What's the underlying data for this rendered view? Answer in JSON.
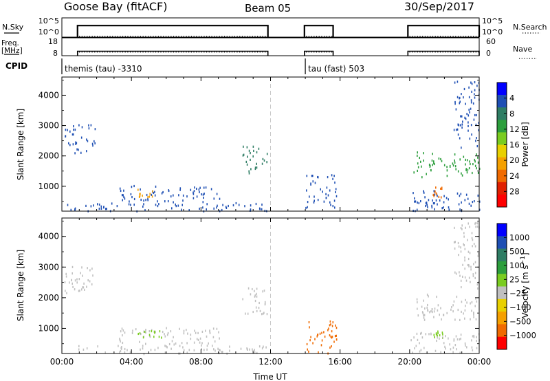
{
  "header": {
    "station": "Goose Bay (fitACF)",
    "beam": "Beam 05",
    "date": "30/Sep/2017"
  },
  "chart_data": [
    {
      "type": "line",
      "panel": "noise",
      "left_label": "N.Sky",
      "right_label": "N.Search",
      "left_ticks": [
        "10^5",
        "10^0"
      ],
      "right_ticks": [
        "10^5",
        "10^0"
      ],
      "series": [
        {
          "segments": [
            [
              0.9,
              11.85
            ],
            [
              13.95,
              15.6
            ],
            [
              19.9,
              24
            ]
          ],
          "level": 0.6
        },
        {
          "segments": [
            [
              0.9,
              11.85
            ],
            [
              13.95,
              15.6
            ],
            [
              19.9,
              24
            ]
          ],
          "level": 0.05
        }
      ]
    },
    {
      "type": "line",
      "panel": "frequency",
      "left_label": "Freq. [MHz]",
      "right_label": "Nave",
      "left_ticks": [
        "18",
        "8"
      ],
      "right_ticks": [
        "60",
        "0"
      ],
      "series": [
        {
          "segments": [
            [
              0.9,
              11.85
            ],
            [
              13.95,
              15.6
            ],
            [
              19.9,
              24
            ]
          ],
          "level_mhz": 10.5
        },
        {
          "segments": [
            [
              0.9,
              11.85
            ],
            [
              13.95,
              15.6
            ],
            [
              19.9,
              24
            ]
          ],
          "level_mhz": 10.0
        }
      ]
    },
    {
      "type": "table",
      "panel": "cpid",
      "label": "CPID",
      "entries": [
        {
          "start": 0.0,
          "text": "themis (tau) -3310"
        },
        {
          "start": 14.0,
          "text": "tau (fast) 503"
        }
      ]
    },
    {
      "type": "heatmap",
      "panel": "power",
      "ylabel": "Slant Range [km]",
      "yticks": [
        1000,
        2000,
        3000,
        4000
      ],
      "ylim": [
        180,
        4600
      ],
      "colorbar": {
        "label": "Power [dB]",
        "ticks": [
          "4",
          "8",
          "12",
          "16",
          "20",
          "24",
          "28"
        ],
        "colors": [
          "#0000ff",
          "#1e4fb4",
          "#2e7d64",
          "#2c9e3c",
          "#7acc20",
          "#e8d000",
          "#f5a000",
          "#f06a00",
          "#e02000",
          "#ff0000"
        ]
      },
      "patches": [
        {
          "t": [
            0.1,
            1.9
          ],
          "r": [
            2100,
            3050
          ],
          "color": "#1e4fb4"
        },
        {
          "t": [
            3.2,
            9.1
          ],
          "r": [
            500,
            1050
          ],
          "color": "#1e4fb4"
        },
        {
          "t": [
            4.1,
            5.8
          ],
          "r": [
            650,
            1000
          ],
          "color": "#f5a000"
        },
        {
          "t": [
            0.2,
            11.8
          ],
          "r": [
            200,
            480
          ],
          "color": "#1e4fb4"
        },
        {
          "t": [
            10.3,
            11.8
          ],
          "r": [
            1450,
            2350
          ],
          "color": "#2e7d64"
        },
        {
          "t": [
            14.0,
            15.8
          ],
          "r": [
            300,
            1400
          ],
          "color": "#1e4fb4"
        },
        {
          "t": [
            20.2,
            24.0
          ],
          "r": [
            1300,
            2150
          ],
          "color": "#2c9e3c"
        },
        {
          "t": [
            21.3,
            21.9
          ],
          "r": [
            650,
            1000
          ],
          "color": "#f06a00"
        },
        {
          "t": [
            22.5,
            24.0
          ],
          "r": [
            2300,
            4500
          ],
          "color": "#1e4fb4"
        },
        {
          "t": [
            20.0,
            24.0
          ],
          "r": [
            200,
            900
          ],
          "color": "#1e4fb4"
        }
      ]
    },
    {
      "type": "heatmap",
      "panel": "velocity",
      "ylabel": "Slant Range [km]",
      "yticks": [
        1000,
        2000,
        3000,
        4000
      ],
      "ylim": [
        180,
        4600
      ],
      "xlabel": "Time UT",
      "xticks": [
        "00:00",
        "04:00",
        "08:00",
        "12:00",
        "16:00",
        "20:00",
        "00:00"
      ],
      "xlim": [
        0,
        24
      ],
      "colorbar": {
        "label": "Velocity [m s^-1]",
        "ticks": [
          "1000",
          "500",
          "100",
          "25",
          "-25",
          "-100",
          "-500",
          "-1000"
        ],
        "colors": [
          "#0000ff",
          "#1e4fb4",
          "#2e7d64",
          "#2c9e3c",
          "#7acc20",
          "#c0c0c0",
          "#e8d000",
          "#f5a000",
          "#f06a00",
          "#ff0000"
        ]
      },
      "patches": [
        {
          "t": [
            0.1,
            1.9
          ],
          "r": [
            2100,
            3050
          ],
          "color": "#c0c0c0"
        },
        {
          "t": [
            3.2,
            9.1
          ],
          "r": [
            500,
            1050
          ],
          "color": "#c0c0c0"
        },
        {
          "t": [
            4.1,
            5.8
          ],
          "r": [
            700,
            950
          ],
          "color": "#7acc20"
        },
        {
          "t": [
            0.2,
            11.8
          ],
          "r": [
            200,
            480
          ],
          "color": "#c0c0c0"
        },
        {
          "t": [
            10.3,
            11.8
          ],
          "r": [
            1450,
            2350
          ],
          "color": "#c0c0c0"
        },
        {
          "t": [
            14.0,
            15.8
          ],
          "r": [
            200,
            1300
          ],
          "color": "#f06a00"
        },
        {
          "t": [
            20.2,
            24.0
          ],
          "r": [
            1300,
            2150
          ],
          "color": "#c0c0c0"
        },
        {
          "t": [
            21.3,
            21.9
          ],
          "r": [
            700,
            950
          ],
          "color": "#7acc20"
        },
        {
          "t": [
            22.5,
            24.0
          ],
          "r": [
            2300,
            4500
          ],
          "color": "#c0c0c0"
        },
        {
          "t": [
            20.0,
            24.0
          ],
          "r": [
            200,
            900
          ],
          "color": "#c0c0c0"
        }
      ]
    }
  ]
}
